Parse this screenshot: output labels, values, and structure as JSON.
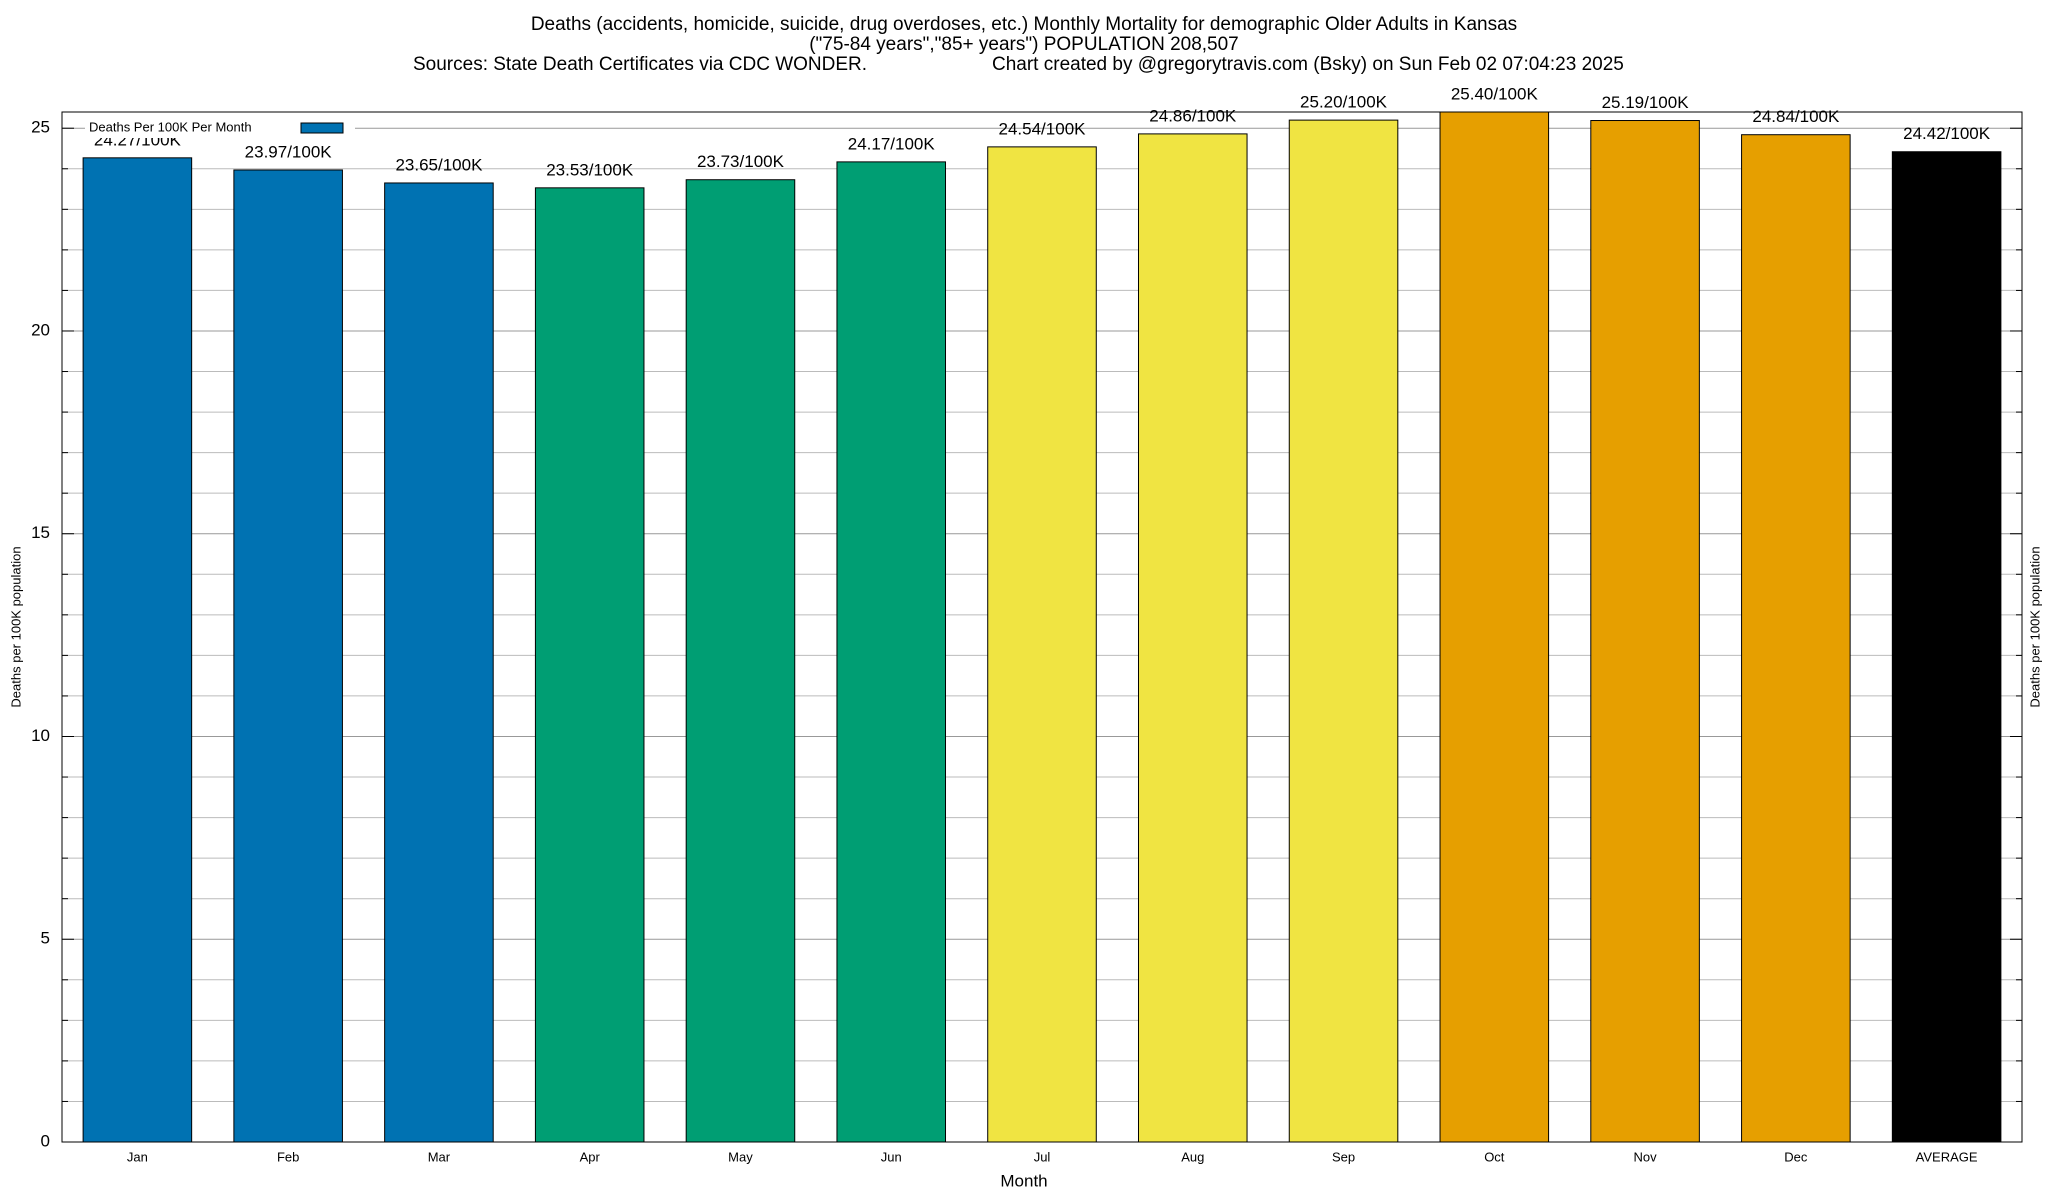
{
  "chart_data": {
    "type": "bar",
    "title": "Deaths (accidents, homicide, suicide, drug overdoses, etc.) Monthly Mortality for demographic Older Adults in Kansas",
    "subtitle": "(\"75-84 years\",\"85+ years\") POPULATION 208,507",
    "source": "Sources: State Death Certificates via CDC WONDER.",
    "credit": "Chart created by @gregorytravis.com (Bsky) on Sun Feb 02 07:04:23 2025",
    "xlabel": "Month",
    "ylabel": "Deaths per 100K population",
    "categories": [
      "Jan",
      "Feb",
      "Mar",
      "Apr",
      "May",
      "Jun",
      "Jul",
      "Aug",
      "Sep",
      "Oct",
      "Nov",
      "Dec",
      "AVERAGE"
    ],
    "series": [
      {
        "name": "Deaths Per 100K Per Month",
        "color": "#0072b2",
        "colors": [
          "#0072b2",
          "#0072b2",
          "#0072b2",
          "#009e73",
          "#009e73",
          "#009e73",
          "#f0e442",
          "#f0e442",
          "#f0e442",
          "#e69f00",
          "#e69f00",
          "#e69f00",
          "#000000"
        ],
        "values": [
          24.27,
          23.97,
          23.65,
          23.53,
          23.73,
          24.17,
          24.54,
          24.86,
          25.2,
          25.4,
          25.19,
          24.84,
          24.42
        ],
        "value_labels": [
          "24.27/100K",
          "23.97/100K",
          "23.65/100K",
          "23.53/100K",
          "23.73/100K",
          "24.17/100K",
          "24.54/100K",
          "24.86/100K",
          "25.20/100K",
          "25.40/100K",
          "25.19/100K",
          "24.84/100K",
          "24.42/100K"
        ]
      }
    ],
    "ylim": [
      0,
      25.4
    ],
    "yticks": [
      0,
      5,
      10,
      15,
      20,
      25
    ],
    "yminorticks": [
      1,
      2,
      3,
      4,
      6,
      7,
      8,
      9,
      11,
      12,
      13,
      14,
      16,
      17,
      18,
      19,
      21,
      22,
      23,
      24
    ],
    "grid": true,
    "legend": "top-left"
  }
}
